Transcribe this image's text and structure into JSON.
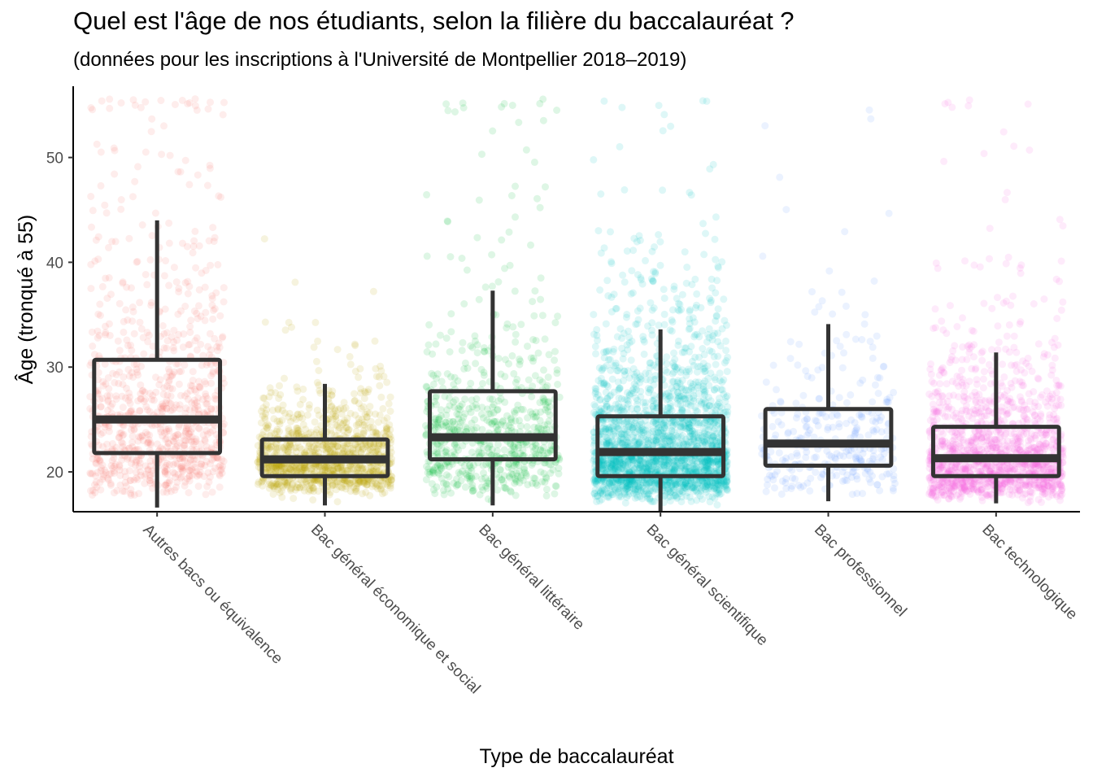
{
  "chart_data": {
    "type": "box",
    "title": "Quel est l'âge de nos étudiants, selon la filière du baccalauréat ?",
    "subtitle": "(données pour les inscriptions à l'Université de Montpellier 2018–2019)",
    "xlabel": "Type de baccalauréat",
    "ylabel": "Âge (tronqué à 55)",
    "ylim": [
      16.2,
      56.8
    ],
    "yticks": [
      20,
      30,
      40,
      50
    ],
    "grid": false,
    "legend": "none",
    "categories": [
      "Autres bacs ou équivalence",
      "Bac général économique et social",
      "Bac général littéraire",
      "Bac général scientifique",
      "Bac professionnel",
      "Bac technologique"
    ],
    "colors": [
      "#F8766D",
      "#B79F00",
      "#00BA38",
      "#00BFC4",
      "#619CFF",
      "#F564E3"
    ],
    "boxes": [
      {
        "whisker_low": 16.6,
        "q1": 21.8,
        "median": 25.0,
        "q3": 30.7,
        "whisker_high": 44.0
      },
      {
        "whisker_low": 16.8,
        "q1": 19.6,
        "median": 21.2,
        "q3": 23.1,
        "whisker_high": 28.4
      },
      {
        "whisker_low": 16.8,
        "q1": 21.2,
        "median": 23.3,
        "q3": 27.7,
        "whisker_high": 37.3
      },
      {
        "whisker_low": 16.2,
        "q1": 19.6,
        "median": 21.9,
        "q3": 25.3,
        "whisker_high": 33.6
      },
      {
        "whisker_low": 17.2,
        "q1": 20.6,
        "median": 22.7,
        "q3": 26.0,
        "whisker_high": 34.1
      },
      {
        "whisker_low": 17.0,
        "q1": 19.6,
        "median": 21.3,
        "q3": 24.3,
        "whisker_high": 31.4
      }
    ]
  }
}
